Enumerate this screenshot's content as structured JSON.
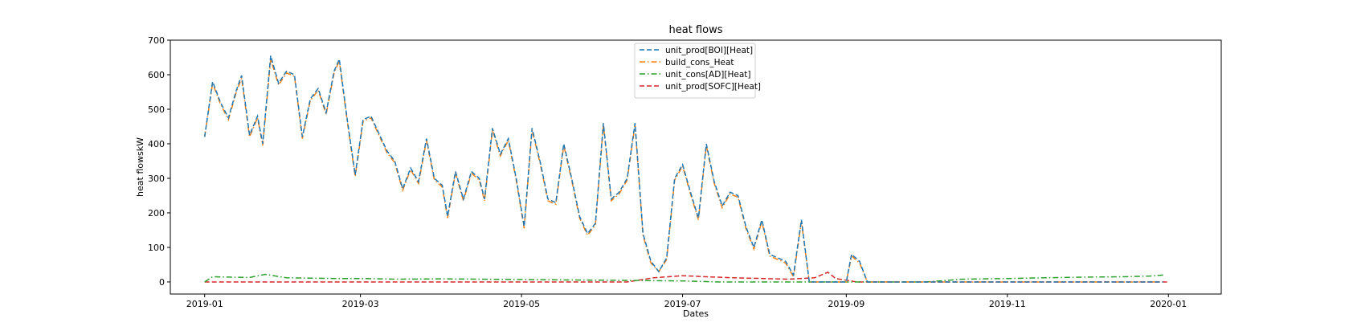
{
  "chart_data": {
    "type": "line",
    "title": "heat flows",
    "xlabel": "Dates",
    "ylabel": "heat flowskW",
    "x_range": [
      "2018-12-19",
      "2020-01-21"
    ],
    "ylim": [
      -35,
      700
    ],
    "x_ticks": [
      "2019-01",
      "2019-03",
      "2019-05",
      "2019-07",
      "2019-09",
      "2019-11",
      "2020-01"
    ],
    "y_ticks": [
      0,
      100,
      200,
      300,
      400,
      500,
      600,
      700
    ],
    "grid": false,
    "legend_position": "top-center",
    "series": [
      {
        "name": "unit_prod[BOI][Heat]",
        "color": "#1f77b4",
        "style": "dashed",
        "points": [
          [
            "2019-01-01",
            420
          ],
          [
            "2019-01-04",
            580
          ],
          [
            "2019-01-07",
            520
          ],
          [
            "2019-01-10",
            475
          ],
          [
            "2019-01-13",
            555
          ],
          [
            "2019-01-15",
            598
          ],
          [
            "2019-01-18",
            425
          ],
          [
            "2019-01-21",
            480
          ],
          [
            "2019-01-23",
            400
          ],
          [
            "2019-01-26",
            655
          ],
          [
            "2019-01-29",
            575
          ],
          [
            "2019-02-01",
            610
          ],
          [
            "2019-02-04",
            600
          ],
          [
            "2019-02-07",
            420
          ],
          [
            "2019-02-10",
            530
          ],
          [
            "2019-02-13",
            560
          ],
          [
            "2019-02-16",
            490
          ],
          [
            "2019-02-19",
            610
          ],
          [
            "2019-02-21",
            645
          ],
          [
            "2019-02-24",
            470
          ],
          [
            "2019-02-27",
            310
          ],
          [
            "2019-03-02",
            470
          ],
          [
            "2019-03-05",
            480
          ],
          [
            "2019-03-08",
            430
          ],
          [
            "2019-03-11",
            380
          ],
          [
            "2019-03-14",
            350
          ],
          [
            "2019-03-17",
            270
          ],
          [
            "2019-03-20",
            330
          ],
          [
            "2019-03-23",
            290
          ],
          [
            "2019-03-26",
            415
          ],
          [
            "2019-03-29",
            300
          ],
          [
            "2019-04-01",
            280
          ],
          [
            "2019-04-03",
            190
          ],
          [
            "2019-04-06",
            320
          ],
          [
            "2019-04-09",
            240
          ],
          [
            "2019-04-12",
            320
          ],
          [
            "2019-04-15",
            300
          ],
          [
            "2019-04-17",
            240
          ],
          [
            "2019-04-20",
            445
          ],
          [
            "2019-04-23",
            370
          ],
          [
            "2019-04-26",
            415
          ],
          [
            "2019-04-29",
            300
          ],
          [
            "2019-05-02",
            160
          ],
          [
            "2019-05-05",
            445
          ],
          [
            "2019-05-08",
            350
          ],
          [
            "2019-05-11",
            240
          ],
          [
            "2019-05-14",
            230
          ],
          [
            "2019-05-17",
            400
          ],
          [
            "2019-05-20",
            300
          ],
          [
            "2019-05-23",
            190
          ],
          [
            "2019-05-26",
            140
          ],
          [
            "2019-05-29",
            170
          ],
          [
            "2019-06-01",
            460
          ],
          [
            "2019-06-04",
            240
          ],
          [
            "2019-06-07",
            260
          ],
          [
            "2019-06-10",
            300
          ],
          [
            "2019-06-13",
            460
          ],
          [
            "2019-06-16",
            140
          ],
          [
            "2019-06-19",
            60
          ],
          [
            "2019-06-22",
            30
          ],
          [
            "2019-06-25",
            70
          ],
          [
            "2019-06-28",
            300
          ],
          [
            "2019-07-01",
            340
          ],
          [
            "2019-07-04",
            260
          ],
          [
            "2019-07-07",
            185
          ],
          [
            "2019-07-10",
            400
          ],
          [
            "2019-07-13",
            290
          ],
          [
            "2019-07-16",
            220
          ],
          [
            "2019-07-19",
            260
          ],
          [
            "2019-07-22",
            250
          ],
          [
            "2019-07-25",
            160
          ],
          [
            "2019-07-28",
            100
          ],
          [
            "2019-07-31",
            180
          ],
          [
            "2019-08-03",
            80
          ],
          [
            "2019-08-06",
            70
          ],
          [
            "2019-08-09",
            60
          ],
          [
            "2019-08-12",
            20
          ],
          [
            "2019-08-15",
            180
          ],
          [
            "2019-08-18",
            0
          ],
          [
            "2019-08-21",
            0
          ],
          [
            "2019-08-24",
            0
          ],
          [
            "2019-08-27",
            0
          ],
          [
            "2019-09-01",
            0
          ],
          [
            "2019-09-03",
            80
          ],
          [
            "2019-09-06",
            60
          ],
          [
            "2019-09-09",
            0
          ],
          [
            "2019-09-12",
            0
          ],
          [
            "2019-09-15",
            0
          ],
          [
            "2019-09-20",
            0
          ],
          [
            "2019-09-25",
            0
          ],
          [
            "2019-10-01",
            0
          ],
          [
            "2019-10-05",
            0
          ],
          [
            "2019-10-10",
            0
          ],
          [
            "2019-10-15",
            0
          ],
          [
            "2019-10-20",
            0
          ],
          [
            "2019-10-25",
            0
          ],
          [
            "2019-10-30",
            0
          ],
          [
            "2019-11-04",
            0
          ],
          [
            "2019-11-09",
            0
          ],
          [
            "2019-11-14",
            0
          ],
          [
            "2019-11-20",
            0
          ],
          [
            "2019-11-24",
            0
          ],
          [
            "2019-11-26",
            0
          ],
          [
            "2019-11-28",
            0
          ],
          [
            "2019-12-01",
            0
          ],
          [
            "2019-12-03",
            0
          ],
          [
            "2019-12-06",
            0
          ],
          [
            "2019-12-09",
            0
          ],
          [
            "2019-12-12",
            0
          ],
          [
            "2019-12-15",
            0
          ],
          [
            "2019-12-18",
            0
          ],
          [
            "2019-12-21",
            0
          ],
          [
            "2019-12-24",
            0
          ],
          [
            "2019-12-27",
            0
          ],
          [
            "2019-12-30",
            0
          ]
        ]
      },
      {
        "name": "build_cons_Heat",
        "color": "#ff7f0e",
        "style": "dashdot",
        "points": [
          [
            "2019-01-01",
            420
          ],
          [
            "2019-01-04",
            575
          ],
          [
            "2019-01-07",
            515
          ],
          [
            "2019-01-10",
            470
          ],
          [
            "2019-01-13",
            550
          ],
          [
            "2019-01-15",
            590
          ],
          [
            "2019-01-18",
            420
          ],
          [
            "2019-01-21",
            475
          ],
          [
            "2019-01-23",
            395
          ],
          [
            "2019-01-26",
            645
          ],
          [
            "2019-01-29",
            570
          ],
          [
            "2019-02-01",
            605
          ],
          [
            "2019-02-04",
            595
          ],
          [
            "2019-02-07",
            415
          ],
          [
            "2019-02-10",
            525
          ],
          [
            "2019-02-13",
            555
          ],
          [
            "2019-02-16",
            485
          ],
          [
            "2019-02-19",
            605
          ],
          [
            "2019-02-21",
            640
          ],
          [
            "2019-02-24",
            465
          ],
          [
            "2019-02-27",
            305
          ],
          [
            "2019-03-02",
            465
          ],
          [
            "2019-03-05",
            475
          ],
          [
            "2019-03-08",
            425
          ],
          [
            "2019-03-11",
            375
          ],
          [
            "2019-03-14",
            345
          ],
          [
            "2019-03-17",
            265
          ],
          [
            "2019-03-20",
            325
          ],
          [
            "2019-03-23",
            285
          ],
          [
            "2019-03-26",
            410
          ],
          [
            "2019-03-29",
            295
          ],
          [
            "2019-04-01",
            275
          ],
          [
            "2019-04-03",
            185
          ],
          [
            "2019-04-06",
            315
          ],
          [
            "2019-04-09",
            235
          ],
          [
            "2019-04-12",
            315
          ],
          [
            "2019-04-15",
            295
          ],
          [
            "2019-04-17",
            235
          ],
          [
            "2019-04-20",
            440
          ],
          [
            "2019-04-23",
            365
          ],
          [
            "2019-04-26",
            410
          ],
          [
            "2019-04-29",
            295
          ],
          [
            "2019-05-02",
            155
          ],
          [
            "2019-05-05",
            440
          ],
          [
            "2019-05-08",
            345
          ],
          [
            "2019-05-11",
            235
          ],
          [
            "2019-05-14",
            225
          ],
          [
            "2019-05-17",
            395
          ],
          [
            "2019-05-20",
            295
          ],
          [
            "2019-05-23",
            185
          ],
          [
            "2019-05-26",
            135
          ],
          [
            "2019-05-29",
            165
          ],
          [
            "2019-06-01",
            455
          ],
          [
            "2019-06-04",
            235
          ],
          [
            "2019-06-07",
            255
          ],
          [
            "2019-06-10",
            295
          ],
          [
            "2019-06-13",
            455
          ],
          [
            "2019-06-16",
            135
          ],
          [
            "2019-06-19",
            55
          ],
          [
            "2019-06-22",
            30
          ],
          [
            "2019-06-25",
            65
          ],
          [
            "2019-06-28",
            295
          ],
          [
            "2019-07-01",
            335
          ],
          [
            "2019-07-04",
            255
          ],
          [
            "2019-07-07",
            180
          ],
          [
            "2019-07-10",
            395
          ],
          [
            "2019-07-13",
            285
          ],
          [
            "2019-07-16",
            215
          ],
          [
            "2019-07-19",
            255
          ],
          [
            "2019-07-22",
            245
          ],
          [
            "2019-07-25",
            155
          ],
          [
            "2019-07-28",
            95
          ],
          [
            "2019-07-31",
            175
          ],
          [
            "2019-08-03",
            75
          ],
          [
            "2019-08-06",
            65
          ],
          [
            "2019-08-09",
            55
          ],
          [
            "2019-08-12",
            15
          ],
          [
            "2019-08-15",
            175
          ],
          [
            "2019-08-18",
            0
          ],
          [
            "2019-08-21",
            0
          ],
          [
            "2019-08-24",
            0
          ],
          [
            "2019-08-27",
            0
          ],
          [
            "2019-09-01",
            0
          ],
          [
            "2019-09-03",
            75
          ],
          [
            "2019-09-06",
            55
          ],
          [
            "2019-09-09",
            0
          ],
          [
            "2019-09-12",
            0
          ],
          [
            "2019-09-15",
            0
          ],
          [
            "2019-09-20",
            0
          ],
          [
            "2019-09-25",
            0
          ],
          [
            "2019-10-01",
            0
          ],
          [
            "2019-10-05",
            0
          ],
          [
            "2019-10-10",
            0
          ],
          [
            "2019-10-15",
            0
          ],
          [
            "2019-10-20",
            0
          ],
          [
            "2019-10-25",
            0
          ],
          [
            "2019-10-30",
            0
          ],
          [
            "2019-11-04",
            0
          ],
          [
            "2019-11-09",
            0
          ],
          [
            "2019-11-14",
            0
          ],
          [
            "2019-11-20",
            0
          ],
          [
            "2019-11-24",
            0
          ],
          [
            "2019-11-26",
            0
          ],
          [
            "2019-11-28",
            0
          ],
          [
            "2019-12-01",
            0
          ],
          [
            "2019-12-03",
            0
          ],
          [
            "2019-12-06",
            0
          ],
          [
            "2019-12-09",
            0
          ],
          [
            "2019-12-12",
            0
          ],
          [
            "2019-12-15",
            0
          ],
          [
            "2019-12-18",
            0
          ],
          [
            "2019-12-21",
            0
          ],
          [
            "2019-12-24",
            0
          ],
          [
            "2019-12-27",
            0
          ],
          [
            "2019-12-30",
            0
          ]
        ]
      },
      {
        "name": "unit_cons[AD][Heat]",
        "color": "#2ca02c",
        "style": "dashdot",
        "points": [
          [
            "2019-01-01",
            0
          ],
          [
            "2019-01-04",
            15
          ],
          [
            "2019-01-10",
            14
          ],
          [
            "2019-01-18",
            13
          ],
          [
            "2019-01-24",
            22
          ],
          [
            "2019-02-01",
            12
          ],
          [
            "2019-02-10",
            11
          ],
          [
            "2019-02-20",
            10
          ],
          [
            "2019-03-01",
            10
          ],
          [
            "2019-03-15",
            8
          ],
          [
            "2019-04-01",
            9
          ],
          [
            "2019-04-15",
            8
          ],
          [
            "2019-05-01",
            7
          ],
          [
            "2019-05-15",
            6
          ],
          [
            "2019-06-01",
            5
          ],
          [
            "2019-06-15",
            4
          ],
          [
            "2019-07-01",
            3
          ],
          [
            "2019-07-15",
            0
          ],
          [
            "2019-08-01",
            0
          ],
          [
            "2019-08-15",
            0
          ],
          [
            "2019-09-01",
            0
          ],
          [
            "2019-09-15",
            0
          ],
          [
            "2019-10-01",
            0
          ],
          [
            "2019-10-15",
            8
          ],
          [
            "2019-11-01",
            10
          ],
          [
            "2019-11-15",
            12
          ],
          [
            "2019-12-01",
            14
          ],
          [
            "2019-12-15",
            15
          ],
          [
            "2019-12-25",
            17
          ],
          [
            "2019-12-30",
            20
          ]
        ]
      },
      {
        "name": "unit_prod[SOFC][Heat]",
        "color": "#d62728",
        "style": "dashed",
        "points": [
          [
            "2019-01-01",
            0
          ],
          [
            "2019-03-01",
            0
          ],
          [
            "2019-05-01",
            0
          ],
          [
            "2019-06-10",
            0
          ],
          [
            "2019-06-20",
            12
          ],
          [
            "2019-07-01",
            18
          ],
          [
            "2019-07-10",
            15
          ],
          [
            "2019-07-20",
            12
          ],
          [
            "2019-08-01",
            10
          ],
          [
            "2019-08-10",
            8
          ],
          [
            "2019-08-20",
            12
          ],
          [
            "2019-08-25",
            28
          ],
          [
            "2019-08-28",
            10
          ],
          [
            "2019-09-05",
            0
          ],
          [
            "2019-11-01",
            0
          ],
          [
            "2020-01-01",
            0
          ]
        ]
      }
    ]
  }
}
